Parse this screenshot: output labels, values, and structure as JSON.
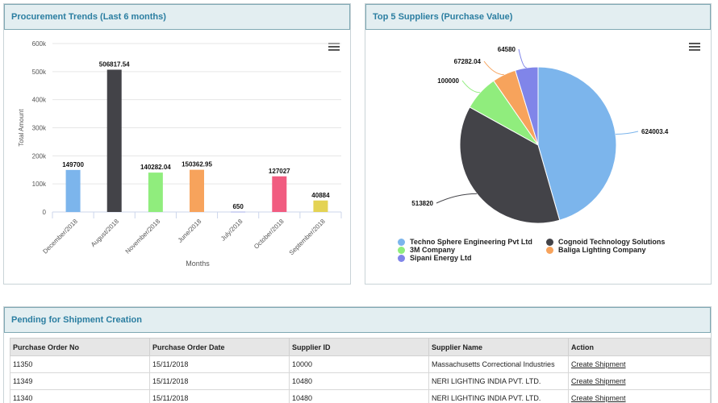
{
  "trends": {
    "title": "Procurement Trends (Last 6 months)",
    "menu_icon": "hamburger-menu-icon"
  },
  "suppliers": {
    "title": "Top 5 Suppliers (Purchase Value)",
    "menu_icon": "hamburger-menu-icon"
  },
  "chart_data": [
    {
      "type": "bar",
      "title": "",
      "xlabel": "Months",
      "ylabel": "Total Amount",
      "ylim": [
        0,
        600000
      ],
      "yticks": [
        "0",
        "100k",
        "200k",
        "300k",
        "400k",
        "500k",
        "600k"
      ],
      "categories": [
        "December/2018",
        "August/2018",
        "November/2018",
        "June/2018",
        "July/2018",
        "October/2018",
        "September/2018"
      ],
      "values": [
        149700,
        506817.54,
        140282.04,
        150362.95,
        650,
        127027,
        40884
      ],
      "labels": [
        "149700",
        "506817.54",
        "140282.04",
        "150362.95",
        "650",
        "127027",
        "40884"
      ],
      "colors": [
        "#7cb5ec",
        "#434348",
        "#90ed7d",
        "#f7a35c",
        "#8085e9",
        "#f15c80",
        "#e4d354"
      ],
      "grid": true
    },
    {
      "type": "pie",
      "title": "",
      "categories": [
        "Techno Sphere Engineering Pvt Ltd",
        "Cognoid Technology Solutions",
        "3M Company",
        "Baliga Lighting Company",
        "Sipani Energy Ltd"
      ],
      "values": [
        624003.4,
        513820,
        100000,
        67282.04,
        64580
      ],
      "labels": [
        "624003.4",
        "513820",
        "100000",
        "67282.04",
        "64580"
      ],
      "colors": [
        "#7cb5ec",
        "#434348",
        "#90ed7d",
        "#f7a35c",
        "#8085e9"
      ],
      "legend": "bottom"
    }
  ],
  "pending": {
    "title": "Pending for Shipment Creation",
    "columns": [
      "Purchase Order No",
      "Purchase Order Date",
      "Supplier ID",
      "Supplier Name",
      "Action"
    ],
    "rows": [
      [
        "11350",
        "15/11/2018",
        "10000",
        "Massachusetts Correctional Industries",
        "Create Shipment"
      ],
      [
        "11349",
        "15/11/2018",
        "10480",
        "NERI LIGHTING INDIA PVT. LTD.",
        "Create Shipment"
      ],
      [
        "11340",
        "15/11/2018",
        "10480",
        "NERI LIGHTING INDIA PVT. LTD.",
        "Create Shipment"
      ]
    ]
  }
}
